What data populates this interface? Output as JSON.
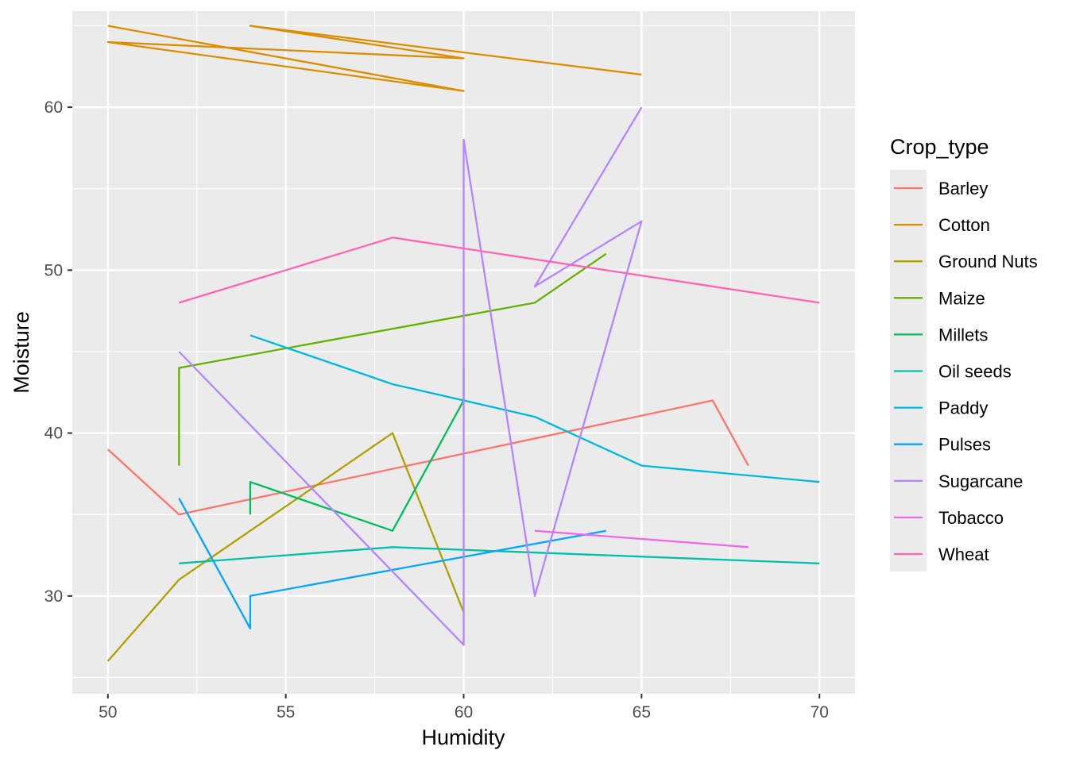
{
  "chart_data": {
    "type": "line",
    "xlabel": "Humidity",
    "ylabel": "Moisture",
    "xlim": [
      49,
      71
    ],
    "ylim": [
      24,
      65.9
    ],
    "x_ticks": [
      50,
      55,
      60,
      65,
      70
    ],
    "y_ticks": [
      30,
      40,
      50,
      60
    ],
    "grid": true,
    "legend_title": "Crop_type",
    "legend_position": "right",
    "series": [
      {
        "name": "Barley",
        "color": "#F8766D",
        "points": [
          [
            50,
            39
          ],
          [
            52,
            35
          ],
          [
            67,
            42
          ],
          [
            68,
            38
          ]
        ]
      },
      {
        "name": "Cotton",
        "color": "#DB8E00",
        "points": [
          [
            50,
            65
          ],
          [
            60,
            61
          ],
          [
            50,
            64
          ],
          [
            60,
            63
          ],
          [
            54,
            65
          ],
          [
            65,
            62
          ]
        ]
      },
      {
        "name": "Ground Nuts",
        "color": "#AEA200",
        "points": [
          [
            50,
            26
          ],
          [
            52,
            31
          ],
          [
            58,
            40
          ],
          [
            60,
            29
          ]
        ]
      },
      {
        "name": "Maize",
        "color": "#64B200",
        "points": [
          [
            52,
            38
          ],
          [
            52,
            44
          ],
          [
            62,
            48
          ],
          [
            64,
            51
          ]
        ]
      },
      {
        "name": "Millets",
        "color": "#00BD5C",
        "points": [
          [
            54,
            35
          ],
          [
            54,
            37
          ],
          [
            58,
            34
          ],
          [
            60,
            42
          ],
          [
            60,
            44
          ]
        ]
      },
      {
        "name": "Oil seeds",
        "color": "#00C1A7",
        "points": [
          [
            52,
            32
          ],
          [
            58,
            33
          ],
          [
            70,
            32
          ]
        ]
      },
      {
        "name": "Paddy",
        "color": "#00BADE",
        "points": [
          [
            54,
            46
          ],
          [
            58,
            43
          ],
          [
            60,
            42
          ],
          [
            62,
            41
          ],
          [
            65,
            38
          ],
          [
            70,
            37
          ]
        ]
      },
      {
        "name": "Pulses",
        "color": "#00A6FF",
        "points": [
          [
            52,
            36
          ],
          [
            54,
            28
          ],
          [
            54,
            30
          ],
          [
            64,
            34
          ]
        ]
      },
      {
        "name": "Sugarcane",
        "color": "#B385FF",
        "points": [
          [
            52,
            45
          ],
          [
            60,
            27
          ],
          [
            60,
            58
          ],
          [
            62,
            30
          ],
          [
            65,
            53
          ],
          [
            62,
            49
          ],
          [
            65,
            60
          ]
        ]
      },
      {
        "name": "Tobacco",
        "color": "#EF67EB",
        "points": [
          [
            62,
            34
          ],
          [
            68,
            33
          ]
        ]
      },
      {
        "name": "Wheat",
        "color": "#FF63B6",
        "points": [
          [
            52,
            48
          ],
          [
            58,
            52
          ],
          [
            70,
            48
          ]
        ]
      }
    ]
  }
}
